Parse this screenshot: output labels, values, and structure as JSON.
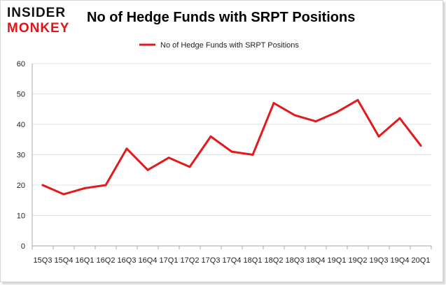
{
  "brand": {
    "line1": "INSIDER",
    "line2": "MONKEY"
  },
  "colors": {
    "series": "#e31a1c",
    "grid": "#e3e3e3",
    "axis": "#aaaaaa",
    "brand_red": "#e01515"
  },
  "chart_data": {
    "type": "line",
    "title": "No of Hedge Funds with SRPT Positions",
    "xlabel": "",
    "ylabel": "",
    "ylim": [
      0,
      60
    ],
    "yticks": [
      0,
      10,
      20,
      30,
      40,
      50,
      60
    ],
    "grid": "horizontal",
    "legend_position": "top-center",
    "categories": [
      "15Q3",
      "15Q4",
      "16Q1",
      "16Q2",
      "16Q3",
      "16Q4",
      "17Q1",
      "17Q2",
      "17Q3",
      "17Q4",
      "18Q1",
      "18Q2",
      "18Q3",
      "18Q4",
      "19Q1",
      "19Q2",
      "19Q3",
      "19Q4",
      "20Q1"
    ],
    "series": [
      {
        "name": "No of Hedge Funds with SRPT Positions",
        "values": [
          20,
          17,
          19,
          20,
          32,
          25,
          29,
          26,
          36,
          31,
          30,
          47,
          43,
          41,
          44,
          48,
          36,
          42,
          33
        ]
      }
    ]
  }
}
